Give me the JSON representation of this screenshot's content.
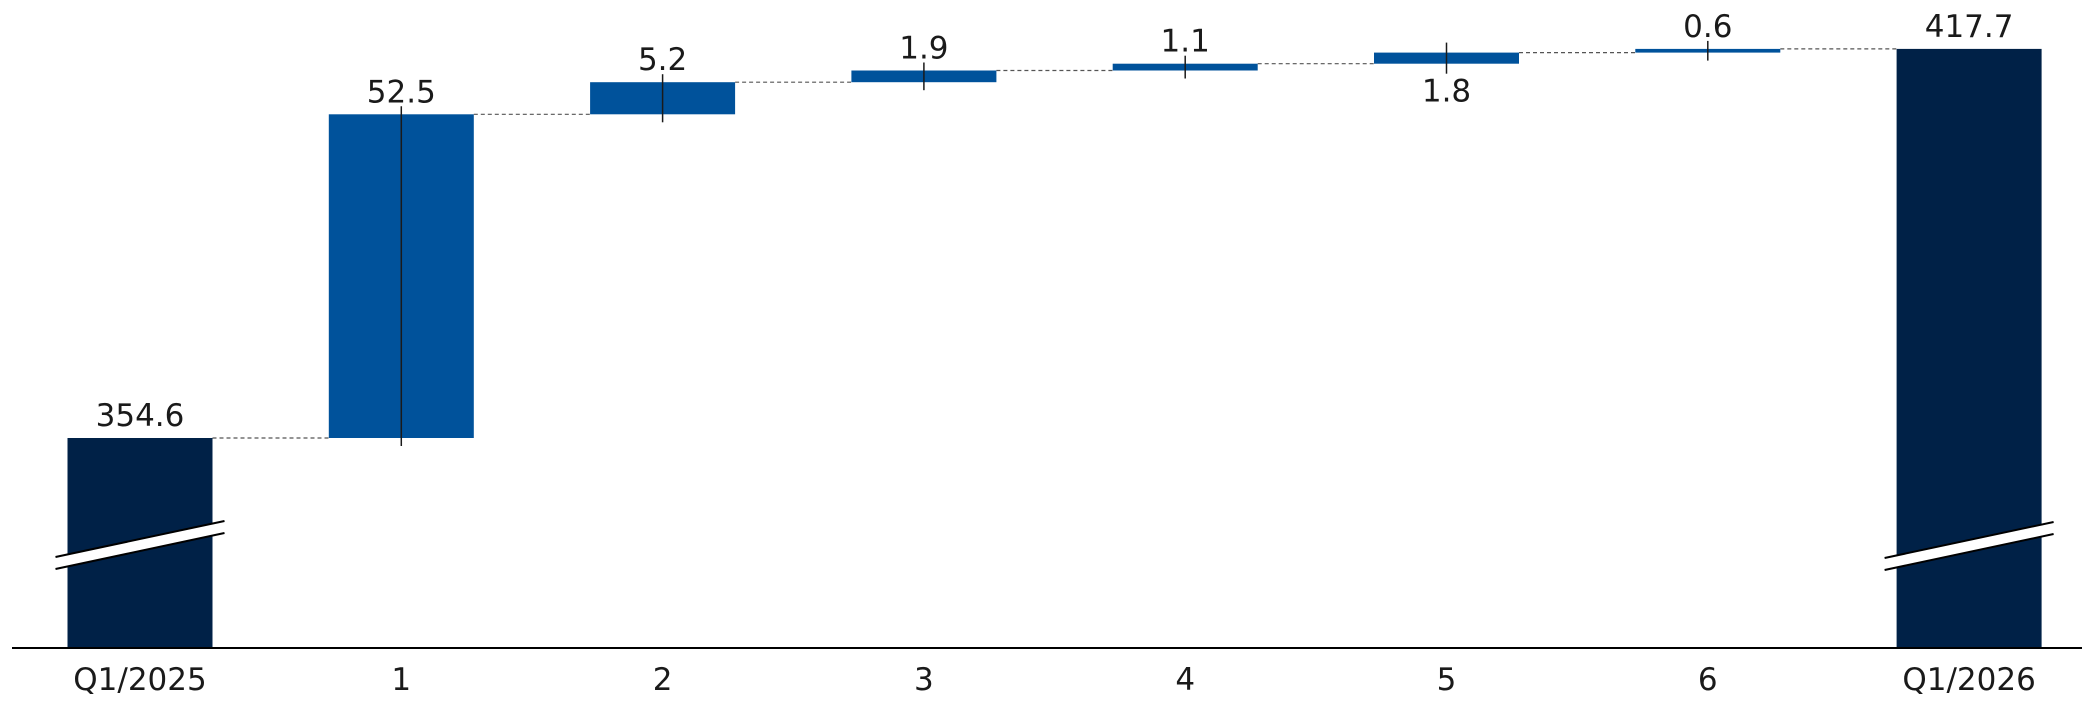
{
  "chart_data": {
    "type": "waterfall",
    "title": "",
    "xlabel": "",
    "ylabel": "",
    "axis_break": true,
    "colors": {
      "total": "#002147",
      "change": "#00529b",
      "connector": "#555555",
      "axis": "#000000"
    },
    "steps": [
      {
        "category": "Q1/2025",
        "value": 354.6,
        "kind": "total",
        "label": "354.6"
      },
      {
        "category": "1",
        "value": 52.5,
        "kind": "increase",
        "label": "52.5"
      },
      {
        "category": "2",
        "value": 5.2,
        "kind": "increase",
        "label": "5.2"
      },
      {
        "category": "3",
        "value": 1.9,
        "kind": "increase",
        "label": "1.9"
      },
      {
        "category": "4",
        "value": 1.1,
        "kind": "increase",
        "label": "1.1"
      },
      {
        "category": "5",
        "value": 1.8,
        "kind": "increase",
        "label": "1.8"
      },
      {
        "category": "6",
        "value": 0.6,
        "kind": "increase",
        "label": "0.6"
      },
      {
        "category": "Q1/2026",
        "value": 417.7,
        "kind": "total",
        "label": "417.7"
      }
    ]
  }
}
